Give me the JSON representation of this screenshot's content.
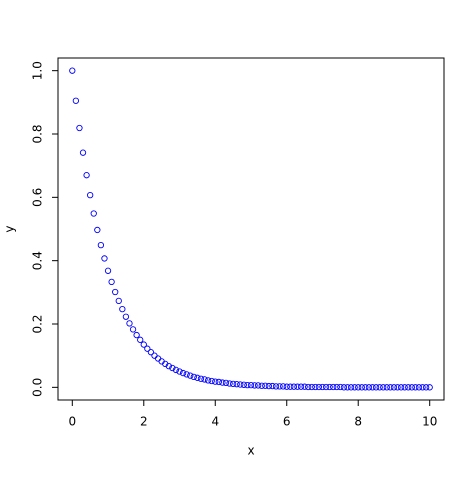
{
  "chart_data": {
    "type": "scatter",
    "x_label": "x",
    "y_label": "y",
    "x": [
      0,
      0.1,
      0.2,
      0.3,
      0.4,
      0.5,
      0.6,
      0.7,
      0.8,
      0.9,
      1,
      1.1,
      1.2,
      1.3,
      1.4,
      1.5,
      1.6,
      1.7,
      1.8,
      1.9,
      2,
      2.1,
      2.2,
      2.3,
      2.4,
      2.5,
      2.6,
      2.7,
      2.8,
      2.9,
      3,
      3.1,
      3.2,
      3.3,
      3.4,
      3.5,
      3.6,
      3.7,
      3.8,
      3.9,
      4,
      4.1,
      4.2,
      4.3,
      4.4,
      4.5,
      4.6,
      4.7,
      4.8,
      4.9,
      5,
      5.1,
      5.2,
      5.3,
      5.4,
      5.5,
      5.6,
      5.7,
      5.8,
      5.9,
      6,
      6.1,
      6.2,
      6.3,
      6.4,
      6.5,
      6.6,
      6.7,
      6.8,
      6.9,
      7,
      7.1,
      7.2,
      7.3,
      7.4,
      7.5,
      7.6,
      7.7,
      7.8,
      7.9,
      8,
      8.1,
      8.2,
      8.3,
      8.4,
      8.5,
      8.6,
      8.7,
      8.8,
      8.9,
      9,
      9.1,
      9.2,
      9.3,
      9.4,
      9.5,
      9.6,
      9.7,
      9.8,
      9.9,
      10
    ],
    "values": [
      1,
      0.905,
      0.819,
      0.741,
      0.67,
      0.607,
      0.549,
      0.497,
      0.449,
      0.407,
      0.368,
      0.333,
      0.301,
      0.273,
      0.247,
      0.223,
      0.202,
      0.183,
      0.165,
      0.15,
      0.135,
      0.122,
      0.111,
      0.1,
      0.091,
      0.082,
      0.074,
      0.067,
      0.061,
      0.055,
      0.05,
      0.045,
      0.041,
      0.037,
      0.033,
      0.03,
      0.027,
      0.025,
      0.022,
      0.02,
      0.018,
      0.017,
      0.015,
      0.014,
      0.012,
      0.011,
      0.01,
      0.009,
      0.008,
      0.007,
      0.007,
      0.006,
      0.006,
      0.005,
      0.005,
      0.004,
      0.004,
      0.003,
      0.003,
      0.003,
      0.002,
      0.002,
      0.002,
      0.002,
      0.002,
      0.002,
      0.001,
      0.001,
      0.001,
      0.001,
      0.001,
      0.001,
      0.001,
      0.001,
      0.001,
      0.001,
      0,
      0,
      0,
      0,
      0,
      0,
      0,
      0,
      0,
      0,
      0,
      0,
      0,
      0,
      0,
      0,
      0,
      0,
      0,
      0,
      0,
      0,
      0,
      0,
      0
    ],
    "color": "#0000ff",
    "xlim": [
      -0.4,
      10.4
    ],
    "xticks": [
      0,
      2,
      4,
      6,
      8,
      10
    ],
    "ylim": [
      -0.04,
      1.04
    ],
    "yticks": [
      {
        "value": 0,
        "label": "0.0"
      },
      0.2,
      0.4,
      0.6,
      0.8,
      {
        "value": 1,
        "label": "1.0"
      }
    ]
  }
}
